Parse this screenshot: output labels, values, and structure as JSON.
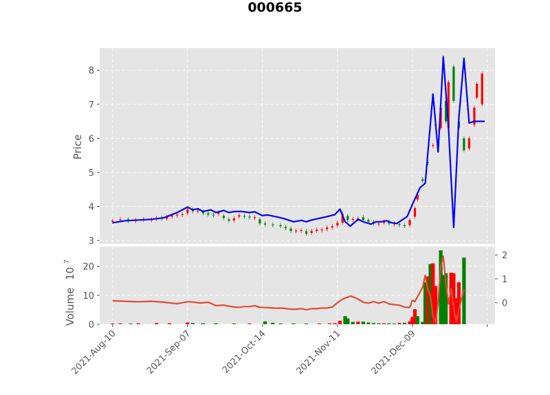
{
  "chart_data": [
    {
      "type": "candlestick",
      "title": "000665",
      "ylabel": "Price",
      "ylim": [
        2.9,
        8.65
      ],
      "yticks": [
        "3",
        "4",
        "5",
        "6",
        "7",
        "8"
      ],
      "xlim": [
        -5,
        148
      ],
      "xticks": [
        {
          "x": 0,
          "label": "2021-Aug-10"
        },
        {
          "x": 29,
          "label": "2021-Sep-07"
        },
        {
          "x": 58,
          "label": "2021-Oct-14"
        },
        {
          "x": 87,
          "label": "2021-Nov-11"
        },
        {
          "x": 116,
          "label": "2021-Dec-09"
        },
        {
          "x": 145,
          "label": ""
        }
      ],
      "grid": true,
      "colors": {
        "up": "#ff0000",
        "down": "#008000",
        "line": "#0000ff",
        "background": "#e5e5e5",
        "grid": "#ffffff"
      },
      "line_series": {
        "name": "",
        "x": [
          0,
          5,
          10,
          15,
          20,
          25,
          29,
          31,
          33,
          35,
          38,
          40,
          43,
          45,
          47,
          50,
          53,
          55,
          58,
          60,
          63,
          66,
          70,
          73,
          75,
          77,
          80,
          83,
          86,
          88,
          90,
          92,
          95,
          97,
          100,
          102,
          104,
          106,
          108,
          110,
          112,
          114,
          116,
          119,
          121,
          124,
          126,
          128,
          130,
          132,
          134,
          136,
          138,
          140,
          142,
          144
        ],
        "y": [
          3.52,
          3.58,
          3.6,
          3.62,
          3.67,
          3.82,
          3.98,
          3.9,
          3.93,
          3.85,
          3.9,
          3.82,
          3.88,
          3.82,
          3.85,
          3.85,
          3.82,
          3.84,
          3.73,
          3.75,
          3.7,
          3.65,
          3.55,
          3.59,
          3.55,
          3.6,
          3.65,
          3.7,
          3.76,
          3.92,
          3.55,
          3.42,
          3.62,
          3.55,
          3.48,
          3.55,
          3.55,
          3.58,
          3.52,
          3.5,
          3.6,
          3.7,
          4.05,
          4.55,
          4.68,
          7.3,
          5.6,
          8.4,
          6.3,
          3.38,
          6.6,
          8.35,
          6.45,
          6.5,
          6.5,
          6.5
        ]
      },
      "candles": [
        {
          "x": 0,
          "open": 3.55,
          "close": 3.58
        },
        {
          "x": 3,
          "open": 3.6,
          "close": 3.62
        },
        {
          "x": 6,
          "open": 3.62,
          "close": 3.57
        },
        {
          "x": 9,
          "open": 3.57,
          "close": 3.61
        },
        {
          "x": 12,
          "open": 3.6,
          "close": 3.63
        },
        {
          "x": 15,
          "open": 3.62,
          "close": 3.62
        },
        {
          "x": 17,
          "open": 3.63,
          "close": 3.66
        },
        {
          "x": 19,
          "open": 3.67,
          "close": 3.64
        },
        {
          "x": 21,
          "open": 3.64,
          "close": 3.7
        },
        {
          "x": 23,
          "open": 3.7,
          "close": 3.73
        },
        {
          "x": 25,
          "open": 3.73,
          "close": 3.76
        },
        {
          "x": 27,
          "open": 3.77,
          "close": 3.77
        },
        {
          "x": 29,
          "open": 3.8,
          "close": 3.92
        },
        {
          "x": 31,
          "open": 3.9,
          "close": 3.86
        },
        {
          "x": 33,
          "open": 3.86,
          "close": 3.88
        },
        {
          "x": 35,
          "open": 3.85,
          "close": 3.8
        },
        {
          "x": 37,
          "open": 3.8,
          "close": 3.76
        },
        {
          "x": 39,
          "open": 3.76,
          "close": 3.74
        },
        {
          "x": 41,
          "open": 3.78,
          "close": 3.82
        },
        {
          "x": 43,
          "open": 3.72,
          "close": 3.66
        },
        {
          "x": 45,
          "open": 3.62,
          "close": 3.58
        },
        {
          "x": 47,
          "open": 3.59,
          "close": 3.65
        },
        {
          "x": 49,
          "open": 3.7,
          "close": 3.74
        },
        {
          "x": 51,
          "open": 3.72,
          "close": 3.7
        },
        {
          "x": 53,
          "open": 3.7,
          "close": 3.68
        },
        {
          "x": 55,
          "open": 3.68,
          "close": 3.68
        },
        {
          "x": 57,
          "open": 3.62,
          "close": 3.5
        },
        {
          "x": 59,
          "open": 3.5,
          "close": 3.47
        },
        {
          "x": 62,
          "open": 3.47,
          "close": 3.46
        },
        {
          "x": 65,
          "open": 3.45,
          "close": 3.42
        },
        {
          "x": 67,
          "open": 3.4,
          "close": 3.36
        },
        {
          "x": 69,
          "open": 3.35,
          "close": 3.28
        },
        {
          "x": 71,
          "open": 3.28,
          "close": 3.29
        },
        {
          "x": 73,
          "open": 3.3,
          "close": 3.3
        },
        {
          "x": 75,
          "open": 3.27,
          "close": 3.2
        },
        {
          "x": 77,
          "open": 3.22,
          "close": 3.28
        },
        {
          "x": 79,
          "open": 3.28,
          "close": 3.32
        },
        {
          "x": 81,
          "open": 3.32,
          "close": 3.32
        },
        {
          "x": 83,
          "open": 3.33,
          "close": 3.38
        },
        {
          "x": 85,
          "open": 3.38,
          "close": 3.42
        },
        {
          "x": 87,
          "open": 3.44,
          "close": 3.52
        },
        {
          "x": 89,
          "open": 3.52,
          "close": 3.78
        },
        {
          "x": 91,
          "open": 3.72,
          "close": 3.6
        },
        {
          "x": 93,
          "open": 3.62,
          "close": 3.63
        },
        {
          "x": 95,
          "open": 3.63,
          "close": 3.65
        },
        {
          "x": 97,
          "open": 3.68,
          "close": 3.6
        },
        {
          "x": 99,
          "open": 3.6,
          "close": 3.55
        },
        {
          "x": 101,
          "open": 3.55,
          "close": 3.5
        },
        {
          "x": 103,
          "open": 3.5,
          "close": 3.5
        },
        {
          "x": 105,
          "open": 3.52,
          "close": 3.56
        },
        {
          "x": 107,
          "open": 3.55,
          "close": 3.5
        },
        {
          "x": 109,
          "open": 3.5,
          "close": 3.5
        },
        {
          "x": 111,
          "open": 3.48,
          "close": 3.45
        },
        {
          "x": 113,
          "open": 3.45,
          "close": 3.43
        },
        {
          "x": 115,
          "open": 3.45,
          "close": 3.6
        },
        {
          "x": 117,
          "open": 3.7,
          "close": 3.95
        },
        {
          "x": 118,
          "open": 4.2,
          "close": 4.35
        },
        {
          "x": 120,
          "open": 4.8,
          "close": 4.75
        },
        {
          "x": 122,
          "open": 5.3,
          "close": 5.28
        },
        {
          "x": 124,
          "open": 5.8,
          "close": 5.8
        },
        {
          "x": 125,
          "open": 6.4,
          "close": 6.38
        },
        {
          "x": 127,
          "open": 6.3,
          "close": 6.9
        },
        {
          "x": 129,
          "open": 7.1,
          "close": 6.5
        },
        {
          "x": 130,
          "open": 6.3,
          "close": 7.65
        },
        {
          "x": 132,
          "open": 8.1,
          "close": 7.1
        },
        {
          "x": 134,
          "open": 6.5,
          "close": 6.3
        },
        {
          "x": 136,
          "open": 6.0,
          "close": 5.65
        },
        {
          "x": 138,
          "open": 5.7,
          "close": 6.0
        },
        {
          "x": 140,
          "open": 6.4,
          "close": 6.9
        },
        {
          "x": 141,
          "open": 7.2,
          "close": 7.6
        },
        {
          "x": 143,
          "open": 7.0,
          "close": 7.9
        }
      ]
    },
    {
      "type": "bar",
      "ylabel": "Volume",
      "ylabel_exponent": "7",
      "ylim": [
        0,
        26.8
      ],
      "yticks": [
        "0",
        "10",
        "20"
      ],
      "right_yticks": [
        "0",
        "1",
        "2"
      ],
      "right_ylim": [
        -0.9,
        2.35
      ],
      "bars": [
        {
          "x": 0,
          "value": 0.2,
          "dir": "up"
        },
        {
          "x": 3,
          "value": 0.25,
          "dir": "up"
        },
        {
          "x": 7,
          "value": 0.2,
          "dir": "down"
        },
        {
          "x": 10,
          "value": 0.3,
          "dir": "up"
        },
        {
          "x": 17,
          "value": 0.4,
          "dir": "up"
        },
        {
          "x": 22,
          "value": 0.35,
          "dir": "up"
        },
        {
          "x": 29,
          "value": 0.6,
          "dir": "up"
        },
        {
          "x": 31,
          "value": 0.4,
          "dir": "down"
        },
        {
          "x": 35,
          "value": 0.3,
          "dir": "down"
        },
        {
          "x": 40,
          "value": 0.3,
          "dir": "down"
        },
        {
          "x": 47,
          "value": 0.25,
          "dir": "down"
        },
        {
          "x": 53,
          "value": 0.2,
          "dir": "up"
        },
        {
          "x": 59,
          "value": 1.0,
          "dir": "down"
        },
        {
          "x": 62,
          "value": 0.5,
          "dir": "down"
        },
        {
          "x": 65,
          "value": 0.2,
          "dir": "down"
        },
        {
          "x": 70,
          "value": 0.25,
          "dir": "down"
        },
        {
          "x": 75,
          "value": 0.2,
          "dir": "down"
        },
        {
          "x": 80,
          "value": 0.25,
          "dir": "up"
        },
        {
          "x": 84,
          "value": 0.3,
          "dir": "up"
        },
        {
          "x": 86,
          "value": 0.35,
          "dir": "up"
        },
        {
          "x": 88,
          "value": 1.2,
          "dir": "up"
        },
        {
          "x": 90,
          "value": 2.8,
          "dir": "down"
        },
        {
          "x": 91,
          "value": 2.0,
          "dir": "down"
        },
        {
          "x": 93,
          "value": 0.8,
          "dir": "down"
        },
        {
          "x": 95,
          "value": 0.9,
          "dir": "up"
        },
        {
          "x": 97,
          "value": 0.9,
          "dir": "down"
        },
        {
          "x": 99,
          "value": 0.6,
          "dir": "down"
        },
        {
          "x": 101,
          "value": 0.4,
          "dir": "down"
        },
        {
          "x": 103,
          "value": 0.3,
          "dir": "down"
        },
        {
          "x": 105,
          "value": 0.3,
          "dir": "up"
        },
        {
          "x": 107,
          "value": 0.3,
          "dir": "down"
        },
        {
          "x": 109,
          "value": 0.25,
          "dir": "down"
        },
        {
          "x": 111,
          "value": 0.4,
          "dir": "up"
        },
        {
          "x": 113,
          "value": 0.5,
          "dir": "down"
        },
        {
          "x": 115,
          "value": 1.0,
          "dir": "up"
        },
        {
          "x": 116,
          "value": 2.5,
          "dir": "up"
        },
        {
          "x": 117,
          "value": 5.2,
          "dir": "up"
        },
        {
          "x": 118,
          "value": 2.8,
          "dir": "down"
        },
        {
          "x": 120,
          "value": 0.8,
          "dir": "down"
        },
        {
          "x": 121,
          "value": 14.5,
          "dir": "down"
        },
        {
          "x": 122,
          "value": 16.5,
          "dir": "up"
        },
        {
          "x": 123,
          "value": 20.8,
          "dir": "down"
        },
        {
          "x": 124,
          "value": 21.0,
          "dir": "up"
        },
        {
          "x": 125,
          "value": 13.2,
          "dir": "up"
        },
        {
          "x": 127,
          "value": 25.5,
          "dir": "down"
        },
        {
          "x": 128,
          "value": 17.0,
          "dir": "down"
        },
        {
          "x": 129,
          "value": 17.6,
          "dir": "down"
        },
        {
          "x": 131,
          "value": 17.8,
          "dir": "up"
        },
        {
          "x": 132,
          "value": 17.6,
          "dir": "up"
        },
        {
          "x": 133,
          "value": 9.0,
          "dir": "up"
        },
        {
          "x": 134,
          "value": 14.5,
          "dir": "up"
        },
        {
          "x": 136,
          "value": 23.0,
          "dir": "down"
        }
      ],
      "line_series": {
        "name": "",
        "x": [
          0,
          5,
          10,
          15,
          20,
          25,
          29,
          31,
          34,
          37,
          40,
          43,
          47,
          49,
          51,
          53,
          55,
          57,
          59,
          61,
          63,
          65,
          67,
          69,
          71,
          73,
          75,
          77,
          79,
          81,
          83,
          85,
          87,
          89,
          90,
          91,
          92,
          93,
          94,
          95,
          97,
          99,
          101,
          103,
          105,
          107,
          109,
          111,
          113,
          115,
          116,
          117,
          118,
          120,
          121,
          122,
          123,
          124,
          125,
          126,
          127,
          128,
          129,
          130,
          131,
          132,
          133,
          134,
          135,
          136
        ],
        "y": [
          0.08,
          0.06,
          0.04,
          0.06,
          0.02,
          -0.04,
          0.04,
          0.03,
          -0.01,
          0.02,
          -0.12,
          -0.1,
          -0.18,
          -0.19,
          -0.16,
          -0.16,
          -0.12,
          -0.19,
          -0.2,
          -0.21,
          -0.23,
          -0.22,
          -0.24,
          -0.27,
          -0.27,
          -0.25,
          -0.29,
          -0.25,
          -0.25,
          -0.22,
          -0.22,
          -0.18,
          0.0,
          0.15,
          0.2,
          0.23,
          0.28,
          0.25,
          0.2,
          0.15,
          0.02,
          -0.02,
          0.05,
          -0.02,
          0.05,
          -0.05,
          -0.08,
          -0.1,
          -0.18,
          -0.2,
          0.1,
          0.05,
          0.25,
          0.65,
          1.15,
          0.55,
          0.3,
          -0.55,
          -0.85,
          0.05,
          1.5,
          1.95,
          0.8,
          -0.05,
          0.6,
          -0.2,
          -0.8,
          -0.3,
          0.15,
          0.55
        ]
      }
    }
  ]
}
